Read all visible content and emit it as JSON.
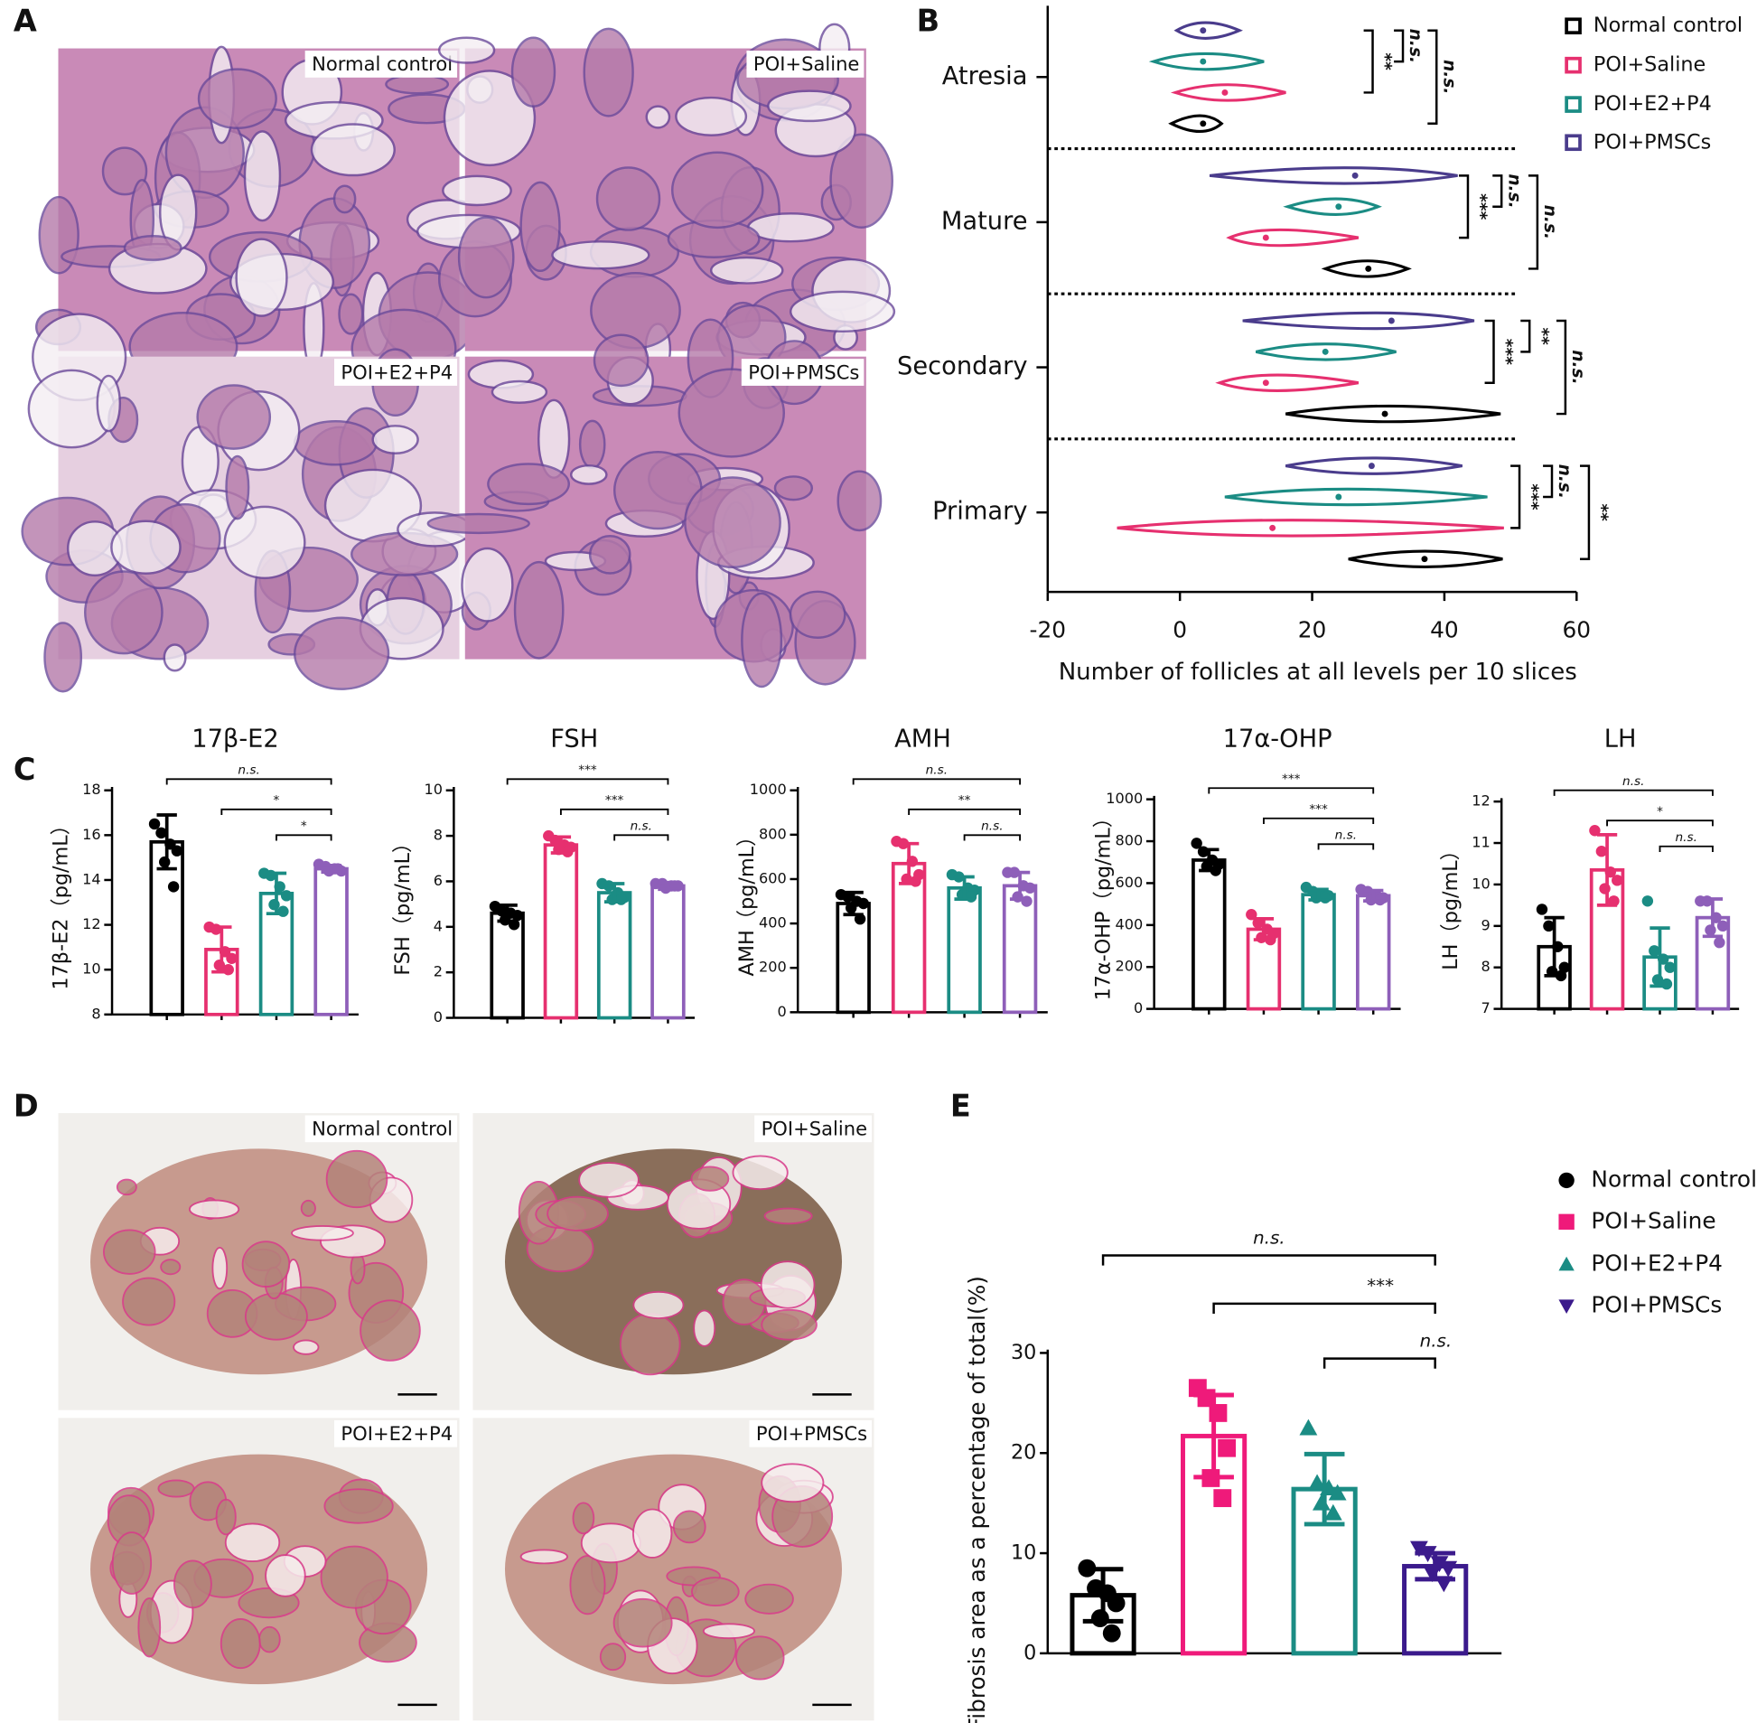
{
  "panels": [
    "A",
    "B",
    "C",
    "D",
    "E"
  ],
  "micrographs": {
    "A": [
      "Normal control",
      "POI+Saline",
      "POI+E2+P4",
      "POI+PMSCs"
    ],
    "D": [
      "Normal control",
      "POI+Saline",
      "POI+E2+P4",
      "POI+PMSCs"
    ]
  },
  "chart_data": [
    {
      "type": "violin",
      "categories": [
        "Atresia",
        "Mature",
        "Secondary",
        "Primary"
      ],
      "xlabel": "Number of follicles at all levels per 10 slices",
      "xlim": [
        -20,
        60
      ],
      "xticks": [
        -20,
        0,
        20,
        40,
        60
      ],
      "legend": "upper right",
      "series": [
        {
          "name": "Normal control",
          "color": "#000000",
          "values": [
            {
              "min": -1.3,
              "median": 3.5,
              "max": 6.3
            },
            {
              "min": 22,
              "median": 28.5,
              "max": 34.5
            },
            {
              "min": 16,
              "median": 31,
              "max": 48.5
            },
            {
              "min": 25.5,
              "median": 37,
              "max": 48.8
            }
          ]
        },
        {
          "name": "POI+Saline",
          "color": "#e6306f",
          "values": [
            {
              "min": -0.7,
              "median": 6.8,
              "max": 16
            },
            {
              "min": 7.5,
              "median": 13,
              "max": 27
            },
            {
              "min": 6,
              "median": 13,
              "max": 27
            },
            {
              "min": -9.5,
              "median": 14,
              "max": 49
            }
          ]
        },
        {
          "name": "POI+E2+P4",
          "color": "#1b8c84",
          "values": [
            {
              "min": -4,
              "median": 3.5,
              "max": 12.7
            },
            {
              "min": 16.3,
              "median": 24,
              "max": 30
            },
            {
              "min": 11.5,
              "median": 22,
              "max": 32.7
            },
            {
              "min": 6.8,
              "median": 24,
              "max": 46.5
            }
          ]
        },
        {
          "name": "POI+PMSCs",
          "color": "#4a3c8c",
          "values": [
            {
              "min": -0.5,
              "median": 3.5,
              "max": 9
            },
            {
              "min": 4.5,
              "median": 26.5,
              "max": 42
            },
            {
              "min": 9.5,
              "median": 32,
              "max": 44.5
            },
            {
              "min": 16,
              "median": 29,
              "max": 42.7
            }
          ]
        }
      ],
      "significance": [
        [
          "**",
          "n.s.",
          "n.s."
        ],
        [
          "***",
          "n.s.",
          "n.s."
        ],
        [
          "***",
          "**",
          "n.s."
        ],
        [
          "***",
          "n.s.",
          "**"
        ]
      ]
    },
    {
      "type": "bar",
      "title": "17β-E2",
      "ylabel": "17β-E2（pg/mL）",
      "ylim": [
        8,
        18
      ],
      "yticks": [
        8,
        10,
        12,
        14,
        16,
        18
      ],
      "series": [
        {
          "color": "#000000",
          "mean": 15.7,
          "sd": 1.2,
          "points": [
            16.5,
            16.1,
            15.6,
            15.3,
            14.8,
            13.7
          ]
        },
        {
          "color": "#e6306f",
          "mean": 10.9,
          "sd": 1.0,
          "points": [
            11.9,
            11.8,
            10.8,
            10.5,
            10.2,
            10.0
          ]
        },
        {
          "color": "#1b8c84",
          "mean": 13.4,
          "sd": 0.9,
          "points": [
            14.3,
            14.2,
            13.7,
            13.3,
            12.9,
            12.6
          ]
        },
        {
          "color": "#8e5fb9",
          "mean": 14.5,
          "sd": 0.15,
          "points": [
            14.7,
            14.6,
            14.5,
            14.4,
            14.4,
            14.5
          ]
        }
      ],
      "significance": [
        "n.s.",
        "*",
        "*"
      ]
    },
    {
      "type": "bar",
      "title": "FSH",
      "ylabel": "FSH（pg/mL）",
      "ylim": [
        0,
        10
      ],
      "yticks": [
        0,
        2,
        4,
        6,
        8,
        10
      ],
      "series": [
        {
          "color": "#000000",
          "mean": 4.6,
          "sd": 0.35,
          "points": [
            4.9,
            4.7,
            4.6,
            4.5,
            4.3,
            4.1
          ]
        },
        {
          "color": "#e6306f",
          "mean": 7.6,
          "sd": 0.35,
          "points": [
            8.0,
            7.8,
            7.6,
            7.5,
            7.4,
            7.3
          ]
        },
        {
          "color": "#1b8c84",
          "mean": 5.5,
          "sd": 0.4,
          "points": [
            5.9,
            5.8,
            5.5,
            5.3,
            5.2,
            5.2
          ]
        },
        {
          "color": "#8e5fb9",
          "mean": 5.8,
          "sd": 0.15,
          "points": [
            5.9,
            5.9,
            5.8,
            5.8,
            5.7,
            5.8
          ]
        }
      ],
      "significance": [
        "***",
        "***",
        "n.s."
      ]
    },
    {
      "type": "bar",
      "title": "AMH",
      "ylabel": "AMH（pg/mL）",
      "ylim": [
        0,
        1000
      ],
      "yticks": [
        0,
        200,
        400,
        600,
        800,
        1000
      ],
      "series": [
        {
          "color": "#000000",
          "mean": 490,
          "sd": 50,
          "points": [
            530,
            520,
            500,
            490,
            470,
            420
          ]
        },
        {
          "color": "#e6306f",
          "mean": 670,
          "sd": 90,
          "points": [
            770,
            760,
            680,
            620,
            600,
            590
          ]
        },
        {
          "color": "#1b8c84",
          "mean": 560,
          "sd": 50,
          "points": [
            620,
            610,
            560,
            550,
            530,
            520
          ]
        },
        {
          "color": "#8e5fb9",
          "mean": 570,
          "sd": 60,
          "points": [
            630,
            630,
            570,
            560,
            520,
            500
          ]
        }
      ],
      "significance": [
        "n.s.",
        "**",
        "n.s."
      ]
    },
    {
      "type": "bar",
      "title": "17α-OHP",
      "ylabel": "17α-OHP（pg/mL）",
      "ylim": [
        0,
        1000
      ],
      "yticks": [
        0,
        200,
        400,
        600,
        800,
        1000
      ],
      "series": [
        {
          "color": "#000000",
          "mean": 710,
          "sd": 50,
          "points": [
            790,
            750,
            710,
            690,
            680,
            660
          ]
        },
        {
          "color": "#e6306f",
          "mean": 380,
          "sd": 50,
          "points": [
            450,
            410,
            380,
            360,
            340,
            330
          ]
        },
        {
          "color": "#1b8c84",
          "mean": 545,
          "sd": 25,
          "points": [
            580,
            560,
            550,
            540,
            530,
            530
          ]
        },
        {
          "color": "#8e5fb9",
          "mean": 540,
          "sd": 25,
          "points": [
            570,
            560,
            540,
            530,
            520,
            520
          ]
        }
      ],
      "significance": [
        "***",
        "***",
        "n.s."
      ]
    },
    {
      "type": "bar",
      "title": "LH",
      "ylabel": "LH（pg/mL）",
      "ylim": [
        7,
        12
      ],
      "yticks": [
        7,
        8,
        9,
        10,
        11,
        12
      ],
      "series": [
        {
          "color": "#000000",
          "mean": 8.5,
          "sd": 0.7,
          "points": [
            9.4,
            9.0,
            8.5,
            8.0,
            7.9,
            7.8
          ]
        },
        {
          "color": "#e6306f",
          "mean": 10.35,
          "sd": 0.85,
          "points": [
            11.3,
            10.8,
            10.3,
            10.1,
            9.9,
            9.6
          ]
        },
        {
          "color": "#1b8c84",
          "mean": 8.25,
          "sd": 0.7,
          "points": [
            9.6,
            8.4,
            8.2,
            8.0,
            7.7,
            7.6
          ]
        },
        {
          "color": "#8e5fb9",
          "mean": 9.2,
          "sd": 0.45,
          "points": [
            9.6,
            9.6,
            9.2,
            9.0,
            8.9,
            8.6
          ]
        }
      ],
      "significance": [
        "n.s.",
        "*",
        "n.s."
      ]
    },
    {
      "type": "bar",
      "ylabel": "Fibrosis area as a percentage of total(%)",
      "ylim": [
        0,
        30
      ],
      "yticks": [
        0,
        10,
        20,
        30
      ],
      "legend": "upper right",
      "series": [
        {
          "name": "Normal control",
          "color": "#000000",
          "marker": "circle",
          "mean": 5.8,
          "sd": 2.6,
          "points": [
            8.5,
            6.5,
            6.0,
            5.0,
            3.5,
            2.0
          ]
        },
        {
          "name": "POI+Saline",
          "color": "#ef1a7a",
          "marker": "square",
          "mean": 21.7,
          "sd": 4.1,
          "points": [
            26.5,
            25.5,
            24.0,
            20.5,
            17.5,
            15.5
          ]
        },
        {
          "name": "POI+E2+P4",
          "color": "#1b8c84",
          "marker": "triangle",
          "mean": 16.4,
          "sd": 3.5,
          "points": [
            22.5,
            17.0,
            16.5,
            16.0,
            15.0,
            14.0
          ]
        },
        {
          "name": "POI+PMSCs",
          "color": "#3b1a8c",
          "marker": "triangle-down",
          "mean": 8.7,
          "sd": 1.3,
          "points": [
            10.5,
            10.0,
            9.0,
            8.5,
            8.0,
            7.0
          ]
        }
      ],
      "significance": [
        "n.s.",
        "***",
        "n.s."
      ]
    }
  ]
}
